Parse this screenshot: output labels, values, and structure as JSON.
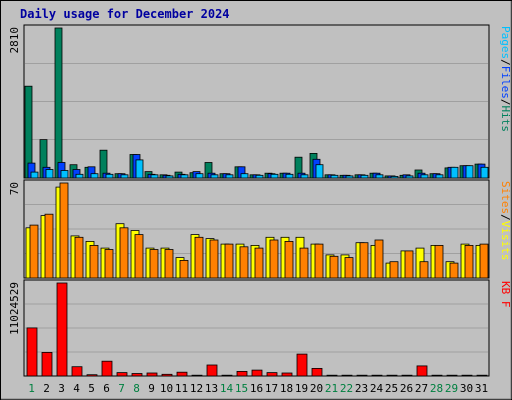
{
  "chart_data": {
    "type": "bar",
    "title": "Daily usage for December 2024",
    "days": [
      "1",
      "2",
      "3",
      "4",
      "5",
      "6",
      "7",
      "8",
      "9",
      "10",
      "11",
      "12",
      "13",
      "14",
      "15",
      "16",
      "17",
      "18",
      "19",
      "20",
      "21",
      "22",
      "23",
      "24",
      "25",
      "26",
      "27",
      "28",
      "29",
      "30",
      "31"
    ],
    "weekend_days": [
      "1",
      "7",
      "8",
      "14",
      "15",
      "21",
      "22",
      "28",
      "29"
    ],
    "panels": [
      {
        "id": "top",
        "max_label": "2810",
        "ylim": [
          0,
          2810
        ],
        "legend": [
          {
            "text": "Pages",
            "color": "#00c0ff"
          },
          {
            "text": "/",
            "color": "#000000"
          },
          {
            "text": "Files",
            "color": "#0040ff"
          },
          {
            "text": "/",
            "color": "#000000"
          },
          {
            "text": "Hits",
            "color": "#00805c"
          }
        ],
        "series": [
          {
            "name": "Hits",
            "color": "#00805c",
            "values": [
              1720,
              720,
              2810,
              250,
              200,
              520,
              80,
              440,
              120,
              60,
              110,
              100,
              290,
              80,
              210,
              60,
              90,
              90,
              390,
              460,
              60,
              50,
              60,
              90,
              40,
              50,
              150,
              80,
              190,
              230,
              260
            ]
          },
          {
            "name": "Files",
            "color": "#0040ff",
            "values": [
              280,
              200,
              290,
              160,
              210,
              90,
              80,
              440,
              70,
              50,
              70,
              120,
              90,
              80,
              210,
              60,
              80,
              90,
              90,
              350,
              60,
              50,
              60,
              90,
              40,
              60,
              90,
              80,
              200,
              230,
              260
            ]
          },
          {
            "name": "Pages",
            "color": "#00c0ff",
            "values": [
              110,
              160,
              140,
              70,
              80,
              70,
              60,
              340,
              60,
              40,
              60,
              80,
              60,
              60,
              80,
              50,
              70,
              70,
              60,
              250,
              50,
              40,
              50,
              60,
              30,
              40,
              60,
              60,
              200,
              230,
              200
            ]
          }
        ]
      },
      {
        "id": "mid",
        "max_label": "70",
        "ylim": [
          0,
          70
        ],
        "legend": [
          {
            "text": "Sites",
            "color": "#ff8000"
          },
          {
            "text": "/",
            "color": "#000000"
          },
          {
            "text": "Visits",
            "color": "#ffff00"
          }
        ],
        "series": [
          {
            "name": "Visits",
            "color": "#ffff00",
            "values": [
              37,
              46,
              67,
              31,
              27,
              22,
              40,
              35,
              22,
              22,
              15,
              32,
              29,
              25,
              25,
              24,
              30,
              30,
              30,
              25,
              17,
              17,
              26,
              24,
              11,
              20,
              22,
              24,
              12,
              25,
              24
            ]
          },
          {
            "name": "Sites",
            "color": "#ff8000",
            "values": [
              39,
              47,
              70,
              30,
              24,
              21,
              37,
              32,
              21,
              21,
              13,
              30,
              28,
              25,
              23,
              22,
              28,
              27,
              22,
              25,
              16,
              15,
              26,
              28,
              12,
              20,
              12,
              24,
              11,
              24,
              25
            ]
          }
        ]
      },
      {
        "id": "bot",
        "max_label": "11024529",
        "ylim": [
          0,
          11024529
        ],
        "legend": [
          {
            "text": "KB F",
            "color": "#ff0000"
          }
        ],
        "series": [
          {
            "name": "KB F",
            "color": "#ff0000",
            "values": [
              5700000,
              2800000,
              11024529,
              1100000,
              150000,
              1750000,
              400000,
              300000,
              350000,
              200000,
              450000,
              100000,
              1300000,
              100000,
              550000,
              700000,
              400000,
              350000,
              2600000,
              900000,
              100000,
              100000,
              100000,
              100000,
              100000,
              100000,
              1200000,
              100000,
              100000,
              100000,
              100000
            ]
          }
        ]
      }
    ]
  }
}
